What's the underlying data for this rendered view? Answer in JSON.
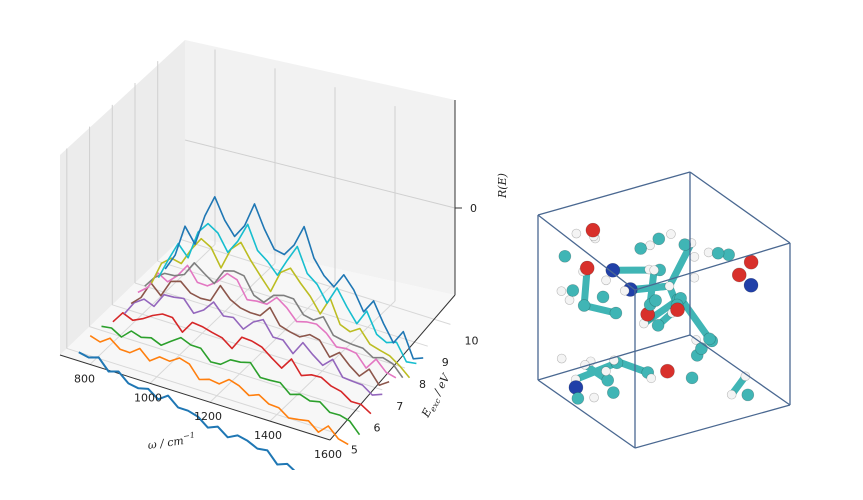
{
  "chart_data": [
    {
      "type": "line",
      "projection": "3d",
      "x_axis": {
        "label_symbol": "ω",
        "label_unit": "cm",
        "label_exp": "−1",
        "ticks": [
          "800",
          "1000",
          "1200",
          "1400",
          "1600"
        ],
        "range": [
          700,
          1600
        ]
      },
      "y_axis": {
        "label_symbol": "E",
        "label_sub": "exc",
        "label_unit": "eV",
        "ticks": [
          "5",
          "6",
          "7",
          "8",
          "9",
          "10"
        ],
        "range": [
          5,
          10
        ]
      },
      "z_axis": {
        "label": "R(E)",
        "ticks": [
          "0"
        ]
      },
      "grid": true,
      "series": [
        {
          "E": 5.0,
          "color": "#1f77b4",
          "values": [
            0.0,
            -0.02,
            -0.05,
            -0.08,
            -0.1,
            -0.13,
            -0.15,
            -0.17,
            -0.2,
            -0.22,
            -0.25,
            -0.27,
            -0.29,
            -0.31,
            -0.34,
            -0.36,
            -0.38,
            -0.4,
            -0.42,
            -0.45,
            -0.47,
            -0.49,
            -0.52,
            -0.54,
            -0.56,
            -0.58,
            -0.6
          ]
        },
        {
          "E": 5.5,
          "color": "#ff7f0e",
          "values": [
            0.0,
            0.04,
            0.06,
            0.03,
            0.05,
            0.08,
            0.04,
            0.02,
            0.05,
            0.1,
            0.06,
            0.01,
            -0.02,
            0.03,
            0.05,
            0.0,
            -0.04,
            -0.06,
            -0.03,
            -0.08,
            -0.12,
            -0.1,
            -0.15,
            -0.18,
            -0.16,
            -0.2,
            -0.22
          ]
        },
        {
          "E": 6.0,
          "color": "#2ca02c",
          "values": [
            0.0,
            0.05,
            0.03,
            0.08,
            0.12,
            0.06,
            0.04,
            0.1,
            0.14,
            0.18,
            0.12,
            0.08,
            0.05,
            0.1,
            0.14,
            0.09,
            0.05,
            0.02,
            0.06,
            0.0,
            -0.04,
            -0.02,
            -0.08,
            -0.12,
            -0.1,
            -0.15,
            -0.18
          ]
        },
        {
          "E": 6.5,
          "color": "#d62728",
          "values": [
            0.0,
            0.08,
            0.12,
            0.1,
            0.18,
            0.22,
            0.16,
            0.12,
            0.2,
            0.26,
            0.22,
            0.16,
            0.12,
            0.18,
            0.24,
            0.18,
            0.12,
            0.1,
            0.16,
            0.08,
            0.04,
            0.06,
            0.02,
            -0.04,
            -0.02,
            -0.08,
            -0.1
          ]
        },
        {
          "E": 7.0,
          "color": "#9467bd",
          "values": [
            0.0,
            0.1,
            0.18,
            0.14,
            0.22,
            0.3,
            0.26,
            0.2,
            0.28,
            0.36,
            0.3,
            0.22,
            0.18,
            0.26,
            0.32,
            0.24,
            0.18,
            0.14,
            0.22,
            0.12,
            0.06,
            0.1,
            0.04,
            -0.02,
            0.02,
            -0.06,
            -0.08
          ]
        },
        {
          "E": 7.3,
          "color": "#8c564b",
          "values": [
            0.0,
            0.12,
            0.22,
            0.18,
            0.3,
            0.38,
            0.32,
            0.26,
            0.34,
            0.44,
            0.36,
            0.28,
            0.24,
            0.32,
            0.38,
            0.3,
            0.22,
            0.18,
            0.26,
            0.16,
            0.1,
            0.14,
            0.08,
            0.02,
            0.06,
            -0.02,
            -0.04
          ]
        },
        {
          "E": 7.6,
          "color": "#e377c2",
          "values": [
            0.0,
            0.14,
            0.26,
            0.22,
            0.36,
            0.46,
            0.4,
            0.32,
            0.42,
            0.52,
            0.44,
            0.34,
            0.3,
            0.38,
            0.46,
            0.36,
            0.28,
            0.22,
            0.3,
            0.2,
            0.12,
            0.18,
            0.1,
            0.04,
            0.08,
            0.0,
            -0.02
          ]
        },
        {
          "E": 7.9,
          "color": "#7f7f7f",
          "values": [
            0.0,
            0.12,
            0.24,
            0.2,
            0.34,
            0.44,
            0.38,
            0.3,
            0.4,
            0.5,
            0.42,
            0.32,
            0.28,
            0.36,
            0.44,
            0.34,
            0.26,
            0.2,
            0.28,
            0.18,
            0.1,
            0.16,
            0.08,
            0.02,
            0.06,
            -0.02,
            -0.04
          ]
        },
        {
          "E": 8.2,
          "color": "#bcbd22",
          "values": [
            0.0,
            0.18,
            0.36,
            0.3,
            0.5,
            0.66,
            0.52,
            0.4,
            0.56,
            0.72,
            0.58,
            0.42,
            0.36,
            0.5,
            0.62,
            0.46,
            0.34,
            0.26,
            0.4,
            0.24,
            0.14,
            0.2,
            0.08,
            -0.02,
            0.04,
            -0.08,
            -0.12
          ]
        },
        {
          "E": 8.5,
          "color": "#17becf",
          "values": [
            0.0,
            0.2,
            0.42,
            0.34,
            0.56,
            0.74,
            0.6,
            0.46,
            0.64,
            0.82,
            0.66,
            0.5,
            0.42,
            0.58,
            0.72,
            0.54,
            0.4,
            0.32,
            0.48,
            0.3,
            0.18,
            0.26,
            0.12,
            0.02,
            0.1,
            -0.04,
            -0.08
          ]
        },
        {
          "E": 8.8,
          "color": "#1f77b4",
          "values": [
            0.0,
            0.24,
            0.5,
            0.4,
            0.66,
            0.9,
            0.72,
            0.54,
            0.78,
            0.98,
            0.78,
            0.58,
            0.5,
            0.7,
            0.86,
            0.64,
            0.48,
            0.38,
            0.58,
            0.36,
            0.22,
            0.32,
            0.14,
            0.02,
            0.12,
            -0.06,
            -0.1
          ]
        }
      ]
    }
  ],
  "molecule": {
    "box_color": "#4a6891",
    "atom_colors": {
      "carbon": "#40b5b5",
      "hydrogen": "#f4f4f4",
      "nitrogen": "#2140a8",
      "oxygen": "#d8302b"
    }
  }
}
